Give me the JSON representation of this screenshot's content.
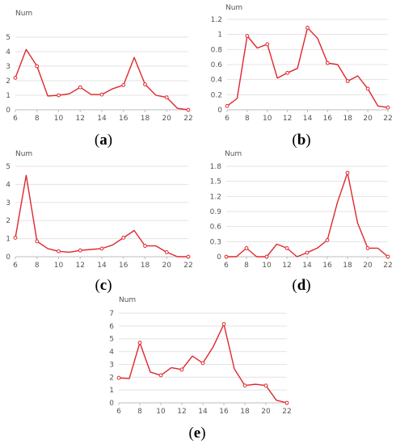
{
  "chart_data": [
    {
      "type": "line",
      "caption": "a",
      "ylabel": "Num",
      "x": [
        6,
        7,
        8,
        9,
        10,
        11,
        12,
        13,
        14,
        15,
        16,
        17,
        18,
        19,
        20,
        21,
        22
      ],
      "series": [
        {
          "values": [
            2.2,
            4.15,
            3.0,
            0.95,
            1.0,
            1.1,
            1.55,
            1.05,
            1.05,
            1.45,
            1.7,
            3.6,
            1.75,
            1.0,
            0.85,
            0.1,
            0.0
          ]
        }
      ],
      "xlim": [
        6,
        22
      ],
      "ylim": [
        0,
        5
      ],
      "xticks": [
        "6",
        "8",
        "10",
        "12",
        "14",
        "16",
        "18",
        "20",
        "22"
      ],
      "yticks": [
        "0",
        "1",
        "2",
        "3",
        "4",
        "5"
      ],
      "color": "#e0262c",
      "grid": "horizontal"
    },
    {
      "type": "line",
      "caption": "b",
      "ylabel": "Num",
      "x": [
        6,
        7,
        8,
        9,
        10,
        11,
        12,
        13,
        14,
        15,
        16,
        17,
        18,
        19,
        20,
        21,
        22
      ],
      "series": [
        {
          "values": [
            0.05,
            0.15,
            0.98,
            0.82,
            0.87,
            0.42,
            0.49,
            0.55,
            1.09,
            0.95,
            0.62,
            0.6,
            0.38,
            0.45,
            0.28,
            0.05,
            0.03
          ]
        }
      ],
      "xlim": [
        6,
        22
      ],
      "ylim": [
        0,
        1.2
      ],
      "xticks": [
        "6",
        "8",
        "10",
        "12",
        "14",
        "16",
        "18",
        "20",
        "22"
      ],
      "yticks": [
        "0",
        "0.2",
        "0.4",
        "0.6",
        "0.8",
        "1",
        "1.2"
      ],
      "color": "#e0262c",
      "grid": "horizontal"
    },
    {
      "type": "line",
      "caption": "c",
      "ylabel": "Num",
      "x": [
        6,
        7,
        8,
        9,
        10,
        11,
        12,
        13,
        14,
        15,
        16,
        17,
        18,
        19,
        20,
        21,
        22
      ],
      "series": [
        {
          "values": [
            1.05,
            4.5,
            0.85,
            0.45,
            0.3,
            0.25,
            0.35,
            0.4,
            0.45,
            0.65,
            1.05,
            1.45,
            0.6,
            0.6,
            0.25,
            0.0,
            0.0
          ]
        }
      ],
      "xlim": [
        6,
        22
      ],
      "ylim": [
        0,
        5
      ],
      "xticks": [
        "6",
        "8",
        "10",
        "12",
        "14",
        "16",
        "18",
        "20",
        "22"
      ],
      "yticks": [
        "0",
        "1",
        "2",
        "3",
        "4",
        "5"
      ],
      "color": "#e0262c",
      "grid": "horizontal"
    },
    {
      "type": "line",
      "caption": "d",
      "ylabel": "Num",
      "x": [
        6,
        7,
        8,
        9,
        10,
        11,
        12,
        13,
        14,
        15,
        16,
        17,
        18,
        19,
        20,
        21,
        22
      ],
      "series": [
        {
          "values": [
            0.0,
            0.0,
            0.17,
            0.0,
            0.0,
            0.25,
            0.17,
            0.0,
            0.08,
            0.17,
            0.33,
            1.08,
            1.67,
            0.67,
            0.17,
            0.17,
            0.0
          ]
        }
      ],
      "xlim": [
        6,
        22
      ],
      "ylim": [
        0,
        1.8
      ],
      "xticks": [
        "6",
        "8",
        "10",
        "12",
        "14",
        "16",
        "18",
        "20",
        "22"
      ],
      "yticks": [
        "0",
        "0.3",
        "0.6",
        "0.9",
        "1.2",
        "1.5",
        "1.8"
      ],
      "color": "#e0262c",
      "grid": "horizontal"
    },
    {
      "type": "line",
      "caption": "e",
      "ylabel": "Num",
      "x": [
        6,
        7,
        8,
        9,
        10,
        11,
        12,
        13,
        14,
        15,
        16,
        17,
        18,
        19,
        20,
        21,
        22
      ],
      "series": [
        {
          "values": [
            1.95,
            1.9,
            4.7,
            2.4,
            2.15,
            2.75,
            2.6,
            3.65,
            3.1,
            4.4,
            6.15,
            2.65,
            1.35,
            1.45,
            1.35,
            0.2,
            0.0
          ]
        }
      ],
      "xlim": [
        6,
        22
      ],
      "ylim": [
        0,
        7
      ],
      "xticks": [
        "6",
        "8",
        "10",
        "12",
        "14",
        "16",
        "18",
        "20",
        "22"
      ],
      "yticks": [
        "0",
        "1",
        "2",
        "3",
        "4",
        "5",
        "6",
        "7"
      ],
      "color": "#e0262c",
      "grid": "horizontal"
    }
  ]
}
